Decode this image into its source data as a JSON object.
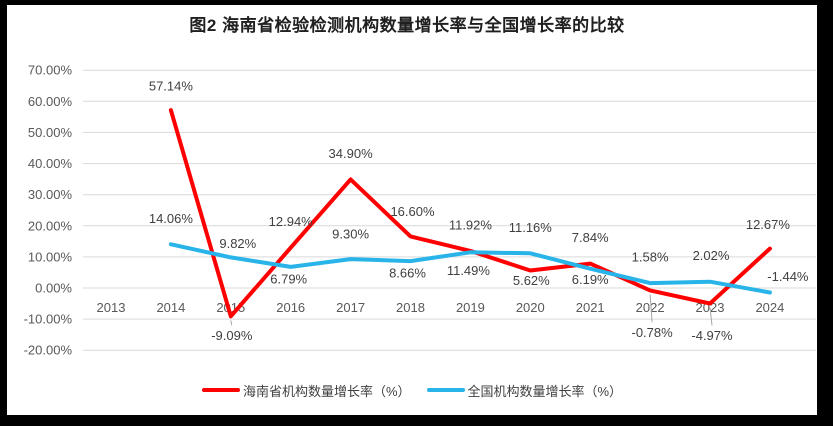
{
  "chart_data": {
    "type": "line",
    "title": "图2 海南省检验检测机构数量增长率与全国增长率的比较",
    "categories": [
      "2013",
      "2014",
      "2015",
      "2016",
      "2017",
      "2018",
      "2019",
      "2020",
      "2021",
      "2022",
      "2023",
      "2024"
    ],
    "series": [
      {
        "id": "hainan",
        "name": "海南省机构数量增长率（%）",
        "color": "#FF0000",
        "values": [
          null,
          57.14,
          -9.09,
          12.94,
          34.9,
          16.6,
          11.92,
          5.62,
          7.84,
          -0.78,
          -4.97,
          12.67
        ],
        "data_labels": [
          "",
          "57.14%",
          "-9.09%",
          "12.94%",
          "34.90%",
          "16.60%",
          "11.92%",
          "5.62%",
          "7.84%",
          "-0.78%",
          "-4.97%",
          "12.67%"
        ],
        "label_offsets": [
          [
            0,
            0
          ],
          [
            0,
            -24
          ],
          [
            1,
            19
          ],
          [
            0,
            -26
          ],
          [
            0,
            -26
          ],
          [
            2,
            -25
          ],
          [
            0,
            -26
          ],
          [
            1,
            10
          ],
          [
            0,
            -26
          ],
          [
            2,
            42
          ],
          [
            2,
            32
          ],
          [
            -2,
            -24
          ]
        ],
        "leader_indices": [
          2,
          9,
          10
        ]
      },
      {
        "id": "national",
        "name": "全国机构数量增长率（%）",
        "color": "#28B4E8",
        "values": [
          null,
          14.06,
          9.82,
          6.79,
          9.3,
          8.66,
          11.49,
          11.16,
          6.19,
          1.58,
          2.02,
          -1.44
        ],
        "data_labels": [
          "",
          "14.06%",
          "9.82%",
          "6.79%",
          "9.30%",
          "8.66%",
          "11.49%",
          "11.16%",
          "6.19%",
          "1.58%",
          "2.02%",
          "-1.44%"
        ],
        "label_offsets": [
          [
            0,
            0
          ],
          [
            0,
            -26
          ],
          [
            7,
            -14
          ],
          [
            -2,
            12
          ],
          [
            0,
            -25
          ],
          [
            -3,
            12
          ],
          [
            -2,
            18
          ],
          [
            0,
            -26
          ],
          [
            0,
            11
          ],
          [
            0,
            -26
          ],
          [
            1,
            -26
          ],
          [
            18,
            -16
          ]
        ],
        "leader_indices": []
      }
    ],
    "y_ticks": [
      "70.00%",
      "60.00%",
      "50.00%",
      "40.00%",
      "30.00%",
      "20.00%",
      "10.00%",
      "0.00%",
      "-10.00%",
      "-20.00%"
    ],
    "ylim": [
      -20,
      70
    ],
    "xlabel": "",
    "ylabel": "",
    "grid": true,
    "legend_position": "bottom",
    "axis_tick_color": "#595959",
    "gridline_color": "#D9D9D9",
    "data_label_color": "#404040",
    "leader_line_color": "#A6A6A6"
  }
}
